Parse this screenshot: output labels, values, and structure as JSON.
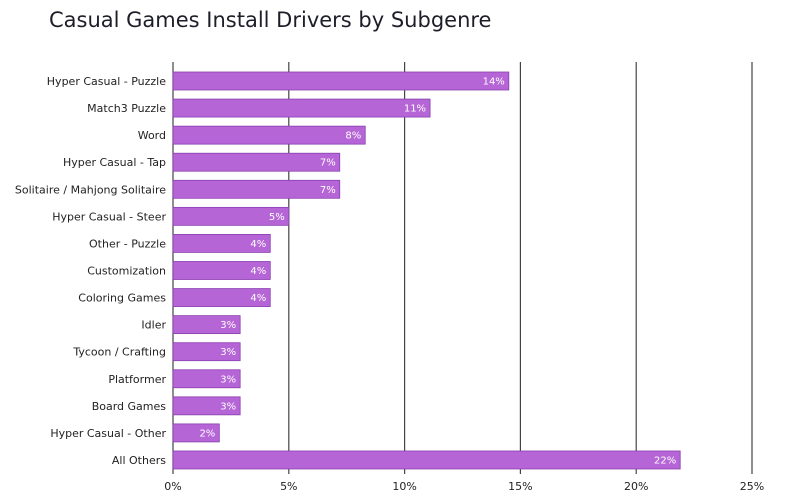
{
  "chart_data": {
    "type": "bar",
    "orientation": "horizontal",
    "title": "Casual Games Install Drivers by Subgenre",
    "xlabel": "",
    "ylabel": "",
    "xlim": [
      0,
      25
    ],
    "x_ticks": [
      0,
      5,
      10,
      15,
      20,
      25
    ],
    "x_tick_labels": [
      "0%",
      "5%",
      "10%",
      "15%",
      "20%",
      "25%"
    ],
    "grid": "vertical",
    "categories": [
      "Hyper Casual - Puzzle",
      "Match3 Puzzle",
      "Word",
      "Hyper Casual - Tap",
      "Solitaire / Mahjong Solitaire",
      "Hyper Casual - Steer",
      "Other - Puzzle",
      "Customization",
      "Coloring Games",
      "Idler",
      "Tycoon / Crafting",
      "Platformer",
      "Board Games",
      "Hyper Casual - Other",
      "All Others"
    ],
    "values": [
      14.5,
      11.1,
      8.3,
      7.2,
      7.2,
      5.0,
      4.2,
      4.2,
      4.2,
      2.9,
      2.9,
      2.9,
      2.9,
      2.0,
      21.9
    ],
    "data_labels": [
      "14%",
      "11%",
      "8%",
      "7%",
      "7%",
      "5%",
      "4%",
      "4%",
      "4%",
      "3%",
      "3%",
      "3%",
      "3%",
      "2%",
      "22%"
    ],
    "colors": {
      "bar_fill": "#b565d6",
      "bar_stroke": "#8a3fb0",
      "grid": "#444444",
      "label_text": "#ffffff"
    }
  }
}
